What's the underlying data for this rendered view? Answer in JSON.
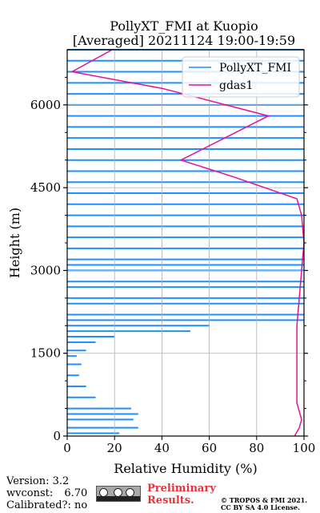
{
  "chart_data": {
    "type": "line",
    "title": "PollyXT_FMI at Kuopio",
    "subtitle": "[Averaged] 20211124 19:00-19:59",
    "xlabel": "Relative Humidity (%)",
    "ylabel": "Height (m)",
    "xlim": [
      0,
      100
    ],
    "ylim": [
      0,
      7000
    ],
    "xticks": [
      0,
      20,
      40,
      60,
      80,
      100
    ],
    "yticks": [
      0,
      1500,
      3000,
      4500,
      6000
    ],
    "grid": true,
    "legend_position": "top-right",
    "series": [
      {
        "name": "PollyXT_FMI",
        "color": "#1f8fff",
        "height": [
          50,
          150,
          300,
          400,
          500,
          700,
          900,
          1100,
          1300,
          1450,
          1550,
          1700,
          1800,
          1900,
          2000,
          2100,
          2200,
          2400,
          2500,
          2700,
          2800,
          3000,
          3100,
          3200,
          3400,
          3600,
          3800,
          4000,
          4200,
          4400,
          4600,
          4800,
          5000,
          5200,
          5400,
          5600,
          5800,
          6000,
          6200,
          6400,
          6600,
          6800,
          7000
        ],
        "values": [
          22,
          30,
          28,
          30,
          27,
          12,
          8,
          5,
          6,
          4,
          8,
          12,
          20,
          52,
          60,
          100,
          100,
          100,
          100,
          100,
          100,
          100,
          100,
          100,
          100,
          100,
          100,
          100,
          100,
          100,
          100,
          100,
          100,
          100,
          100,
          100,
          100,
          100,
          100,
          100,
          100,
          100,
          100
        ]
      },
      {
        "name": "gdas1",
        "color": "#e0129c",
        "height": [
          0,
          150,
          300,
          600,
          1500,
          2000,
          2500,
          3000,
          3500,
          4000,
          4300,
          4700,
          5000,
          5800,
          6300,
          6600,
          7000
        ],
        "values": [
          96,
          98,
          99,
          97,
          97,
          97,
          98,
          99,
          100,
          99,
          97,
          70,
          48,
          85,
          40,
          2,
          19
        ]
      }
    ]
  },
  "footer": {
    "version": "Version: 3.2",
    "wvconst_label": "wvconst:",
    "wvconst_value": "6.70",
    "calibrated": "Calibrated?: no",
    "license_badge_text": "cc by sa",
    "preliminary": "Preliminary Results.",
    "copyright_line1": "© TROPOS & FMI 2021.",
    "copyright_line2": "CC BY SA 4.0 License."
  }
}
